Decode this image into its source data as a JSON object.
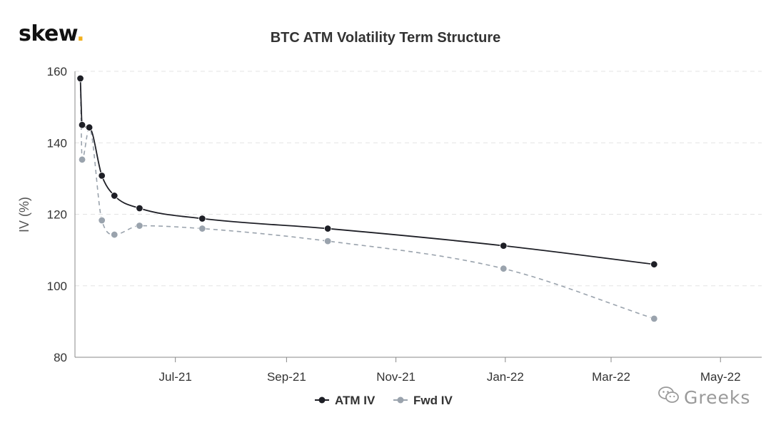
{
  "logo": {
    "text": "skew",
    "dot": "."
  },
  "watermark": {
    "text": "Greeks",
    "icon": "wechat-icon"
  },
  "chart_data": {
    "type": "line",
    "title": "BTC ATM Volatility Term Structure",
    "ylabel": "IV (%)",
    "xlabel": "",
    "ylim": [
      80,
      160
    ],
    "yticks": [
      80,
      100,
      120,
      140,
      160
    ],
    "xlim": [
      "2021-05-06",
      "2022-05-24"
    ],
    "xticks": [
      {
        "date": "2021-07-01",
        "label": "Jul-21"
      },
      {
        "date": "2021-09-01",
        "label": "Sep-21"
      },
      {
        "date": "2021-11-01",
        "label": "Nov-21"
      },
      {
        "date": "2022-01-01",
        "label": "Jan-22"
      },
      {
        "date": "2022-03-01",
        "label": "Mar-22"
      },
      {
        "date": "2022-05-01",
        "label": "May-22"
      }
    ],
    "grid": "horizontal-dashed",
    "legend": "bottom-center",
    "series": [
      {
        "name": "ATM IV",
        "color": "#1e1f26",
        "style": "solid",
        "points": [
          {
            "x": "2021-05-09",
            "y": 158
          },
          {
            "x": "2021-05-10",
            "y": 145
          },
          {
            "x": "2021-05-14",
            "y": 144.3
          },
          {
            "x": "2021-05-21",
            "y": 130.8
          },
          {
            "x": "2021-05-28",
            "y": 125.2
          },
          {
            "x": "2021-06-11",
            "y": 121.7
          },
          {
            "x": "2021-07-16",
            "y": 118.8
          },
          {
            "x": "2021-09-24",
            "y": 116
          },
          {
            "x": "2021-12-31",
            "y": 111.2
          },
          {
            "x": "2022-03-25",
            "y": 106
          }
        ]
      },
      {
        "name": "Fwd IV",
        "color": "#9aa3ad",
        "style": "dashed",
        "points": [
          {
            "x": "2021-05-09",
            "y": 158
          },
          {
            "x": "2021-05-10",
            "y": 135.3
          },
          {
            "x": "2021-05-14",
            "y": 144.2
          },
          {
            "x": "2021-05-21",
            "y": 118.3
          },
          {
            "x": "2021-05-28",
            "y": 114.3
          },
          {
            "x": "2021-06-11",
            "y": 116.8
          },
          {
            "x": "2021-07-16",
            "y": 116
          },
          {
            "x": "2021-09-24",
            "y": 112.5
          },
          {
            "x": "2021-12-31",
            "y": 104.8
          },
          {
            "x": "2022-03-25",
            "y": 90.8
          }
        ]
      }
    ]
  }
}
